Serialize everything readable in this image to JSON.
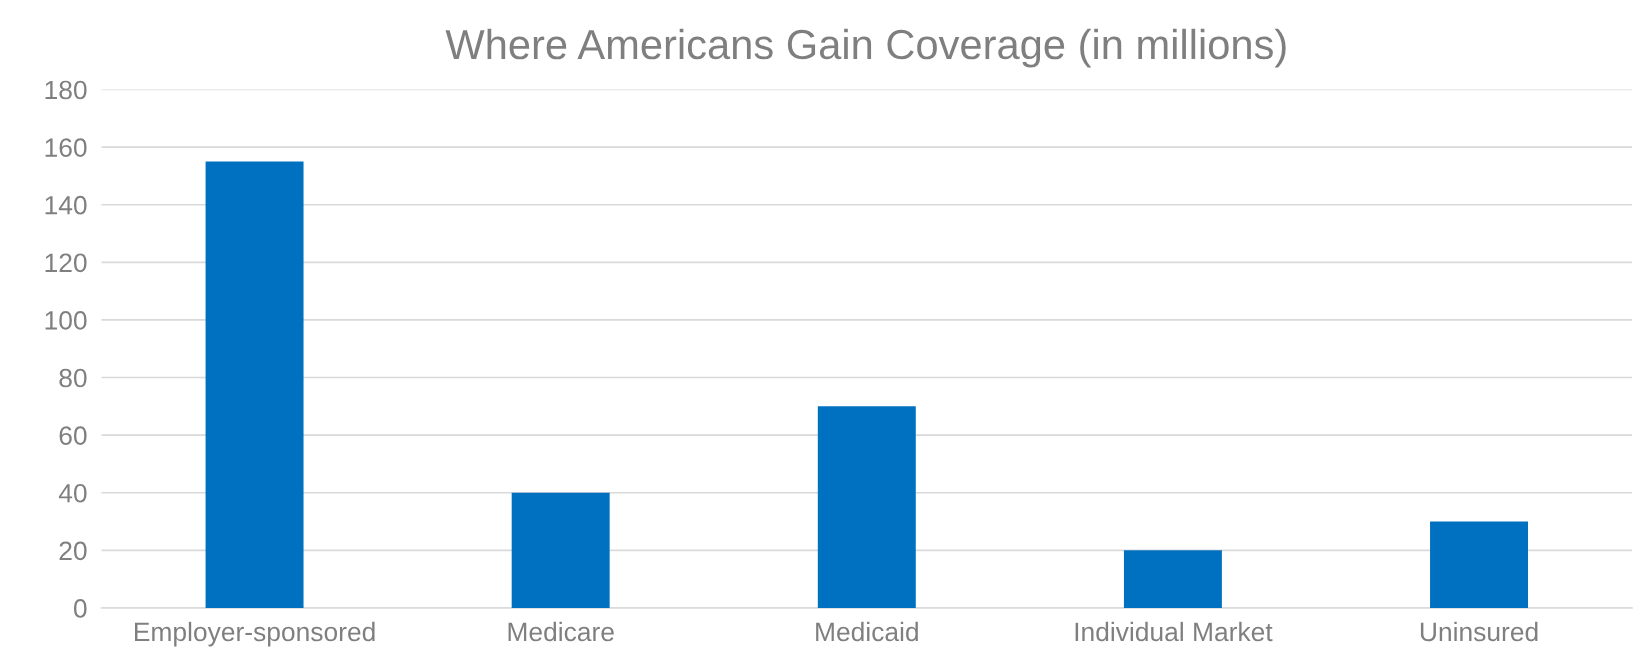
{
  "chart_data": {
    "type": "bar",
    "title": "Where Americans Gain Coverage (in millions)",
    "categories": [
      "Employer-sponsored",
      "Medicare",
      "Medicaid",
      "Individual Market",
      "Uninsured"
    ],
    "values": [
      155,
      40,
      70,
      20,
      30
    ],
    "color": "#0070c0",
    "ylim": [
      0,
      180
    ],
    "yticks": [
      0,
      20,
      40,
      60,
      80,
      100,
      120,
      140,
      160,
      180
    ],
    "grid": "y",
    "legend": false
  }
}
